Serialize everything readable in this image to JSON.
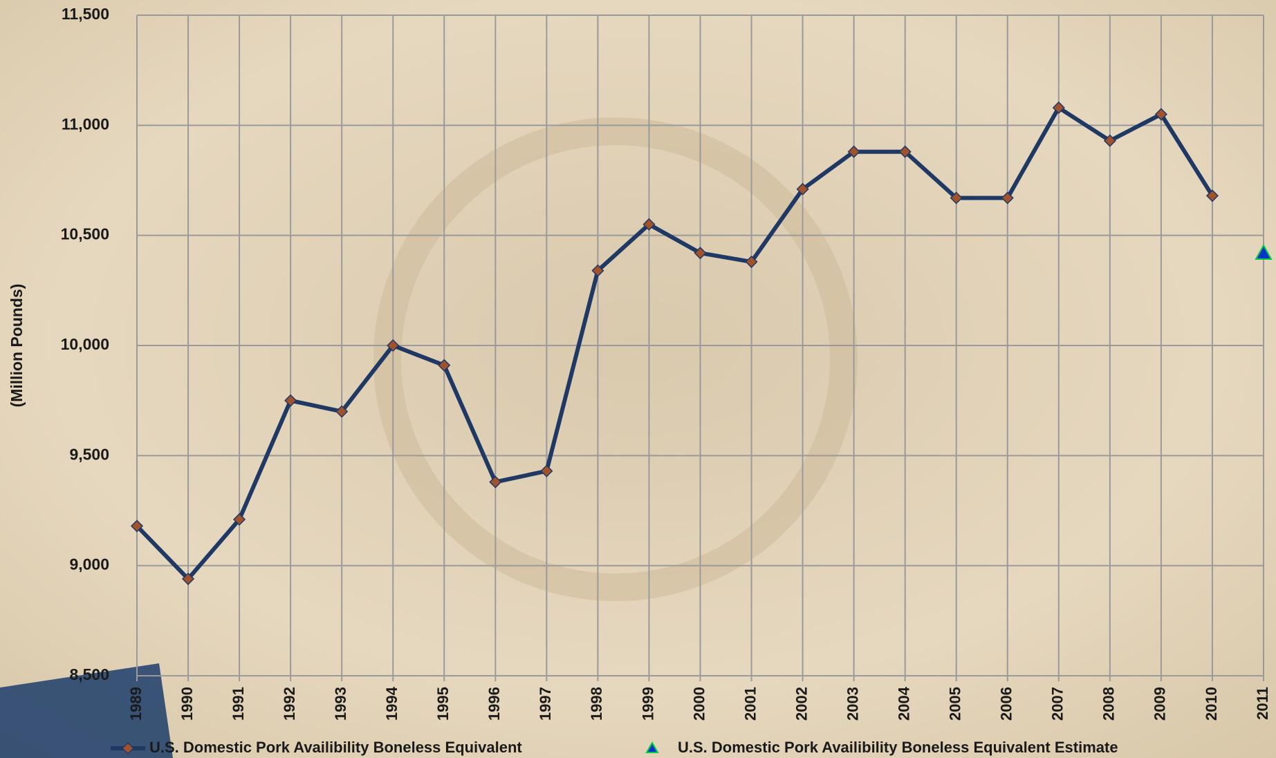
{
  "chart_data": {
    "type": "line",
    "y_label": "(Million Pounds)",
    "categories": [
      "1989",
      "1990",
      "1991",
      "1992",
      "1993",
      "1994",
      "1995",
      "1996",
      "1997",
      "1998",
      "1999",
      "2000",
      "2001",
      "2002",
      "2003",
      "2004",
      "2005",
      "2006",
      "2007",
      "2008",
      "2009",
      "2010",
      "2011"
    ],
    "series": [
      {
        "name": "U.S. Domestic Pork Availibility  Boneless Equivalent",
        "color": "#1f3864",
        "marker": "diamond",
        "marker_color": "#a0522d",
        "values": [
          9180,
          8940,
          9210,
          9750,
          9700,
          10000,
          9910,
          9380,
          9430,
          10340,
          10550,
          10420,
          10380,
          10710,
          10880,
          10880,
          10670,
          10670,
          11080,
          10930,
          11050,
          10680,
          null
        ]
      },
      {
        "name": "U.S. Domestic Pork Availibility  Boneless Equivalent Estimate",
        "color": "#0033cc",
        "marker": "triangle",
        "marker_color": "#00cc44",
        "values": [
          null,
          null,
          null,
          null,
          null,
          null,
          null,
          null,
          null,
          null,
          null,
          null,
          null,
          null,
          null,
          null,
          null,
          null,
          null,
          null,
          null,
          null,
          10420
        ]
      }
    ],
    "ylim": [
      8500,
      11500
    ],
    "yticks": [
      {
        "value": 8500,
        "label": "8,500"
      },
      {
        "value": 9000,
        "label": "9,000"
      },
      {
        "value": 9500,
        "label": "9,500"
      },
      {
        "value": 10000,
        "label": "10,000"
      },
      {
        "value": 10500,
        "label": "10,500"
      },
      {
        "value": 11000,
        "label": "11,000"
      },
      {
        "value": 11500,
        "label": "11,500"
      }
    ],
    "grid": true
  }
}
